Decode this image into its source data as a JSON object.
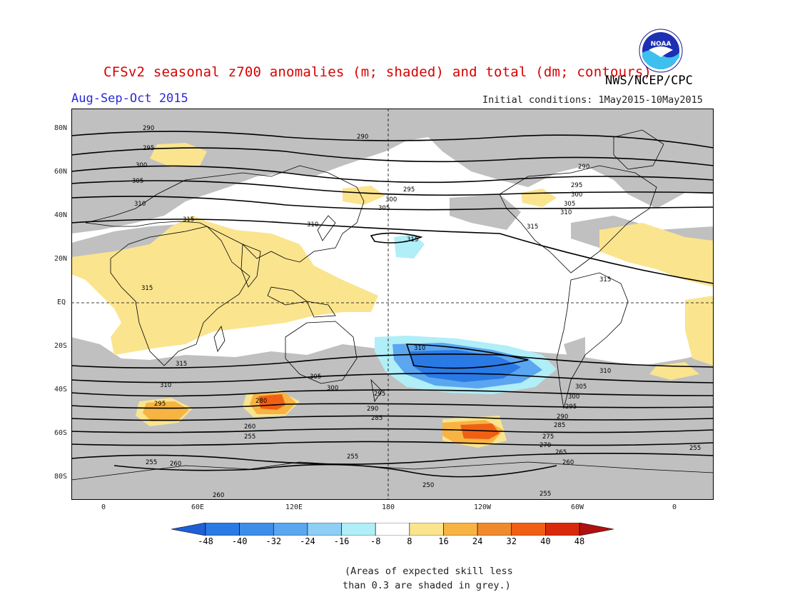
{
  "header": {
    "title": "CFSv2 seasonal z700 anomalies (m; shaded) and total (dm; contours)",
    "agency": "NWS/NCEP/CPC",
    "period": "Aug-Sep-Oct 2015",
    "initial_conditions": "Initial conditions: 1May2015-10May2015",
    "logo_text": "NOAA"
  },
  "map": {
    "lat_labels": [
      "80N",
      "60N",
      "40N",
      "20N",
      "EQ",
      "20S",
      "40S",
      "60S",
      "80S"
    ],
    "lon_labels": [
      "0",
      "60E",
      "120E",
      "180",
      "120W",
      "60W",
      "0"
    ],
    "contour_labels": [
      "290",
      "295",
      "300",
      "305",
      "310",
      "315",
      "315",
      "310",
      "305",
      "300",
      "295",
      "290",
      "285",
      "280",
      "275",
      "270",
      "265",
      "260",
      "255",
      "250"
    ],
    "colors": {
      "skill_mask": "#c0c0c0",
      "pos_light": "#fae48e",
      "neg_light": "#b0eef8",
      "neg_mid": "#5ba6ef",
      "neg_strong": "#2a7ae6",
      "pos_mid": "#f7b443",
      "pos_strong": "#f06014"
    }
  },
  "colorbar": {
    "labels": [
      "-48",
      "-40",
      "-32",
      "-24",
      "-16",
      "-8",
      "8",
      "16",
      "24",
      "32",
      "40",
      "48"
    ],
    "colors": [
      "#1e5fd6",
      "#2a7ae6",
      "#3d8ee8",
      "#5ba6ef",
      "#8dcff5",
      "#b0eef8",
      "#ffffff",
      "#fae48e",
      "#f7b443",
      "#f08a2c",
      "#f06014",
      "#d82a0a",
      "#b01010"
    ]
  },
  "note": {
    "line1": "(Areas of expected skill less",
    "line2": "than 0.3 are shaded in grey.)"
  }
}
